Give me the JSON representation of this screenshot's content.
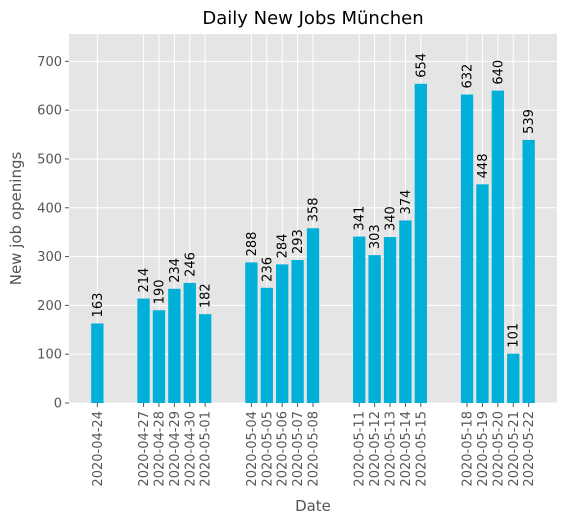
{
  "chart_data": {
    "type": "bar",
    "title": "Daily New Jobs München",
    "xlabel": "Date",
    "ylabel": "New job openings",
    "ylim": [
      0,
      756
    ],
    "yticks": [
      0,
      100,
      200,
      300,
      400,
      500,
      600,
      700
    ],
    "grid": true,
    "bar_color": "#00b0d8",
    "background_color": "#e5e5e5",
    "grid_color": "#ffffff",
    "points": [
      {
        "date": "2020-04-24",
        "value": 163
      },
      {
        "date": "2020-04-27",
        "value": 214
      },
      {
        "date": "2020-04-28",
        "value": 190
      },
      {
        "date": "2020-04-29",
        "value": 234
      },
      {
        "date": "2020-04-30",
        "value": 246
      },
      {
        "date": "2020-05-01",
        "value": 182
      },
      {
        "date": "2020-05-04",
        "value": 288
      },
      {
        "date": "2020-05-05",
        "value": 236
      },
      {
        "date": "2020-05-06",
        "value": 284
      },
      {
        "date": "2020-05-07",
        "value": 293
      },
      {
        "date": "2020-05-08",
        "value": 358
      },
      {
        "date": "2020-05-11",
        "value": 341
      },
      {
        "date": "2020-05-12",
        "value": 303
      },
      {
        "date": "2020-05-13",
        "value": 340
      },
      {
        "date": "2020-05-14",
        "value": 374
      },
      {
        "date": "2020-05-15",
        "value": 654
      },
      {
        "date": "2020-05-18",
        "value": 632
      },
      {
        "date": "2020-05-19",
        "value": 448
      },
      {
        "date": "2020-05-20",
        "value": 640
      },
      {
        "date": "2020-05-21",
        "value": 101
      },
      {
        "date": "2020-05-22",
        "value": 539
      }
    ]
  }
}
